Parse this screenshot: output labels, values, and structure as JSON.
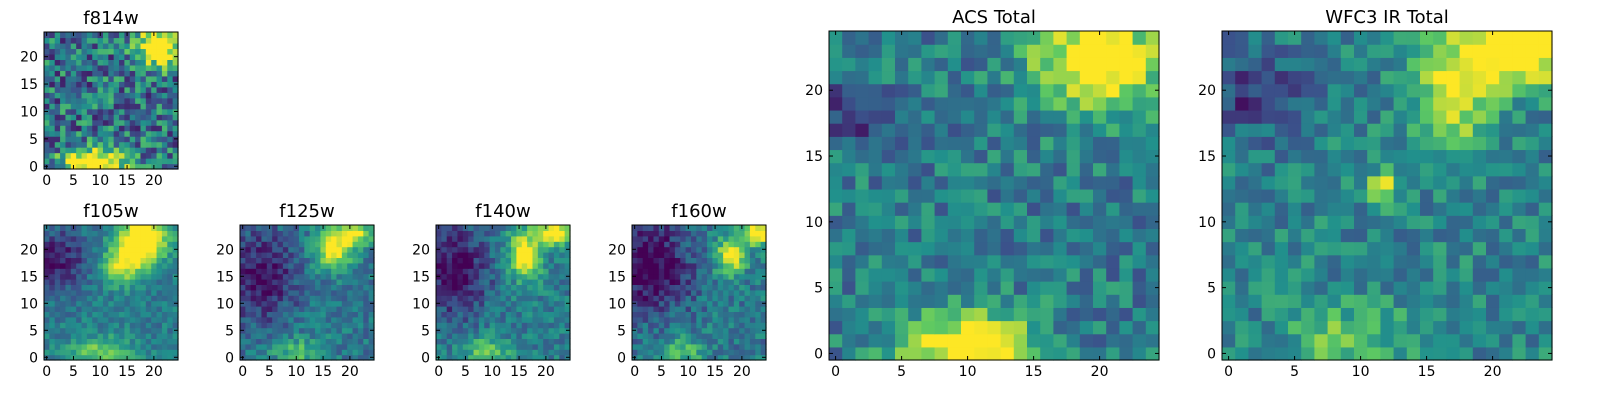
{
  "figure": {
    "grid": false,
    "colormap": "viridis"
  },
  "colormap_stops": [
    "#440154",
    "#3b528b",
    "#21918c",
    "#5ec962",
    "#fde725"
  ],
  "chart_data": [
    {
      "id": "f814w",
      "type": "heatmap",
      "title": "f814w",
      "shape": [
        25,
        25
      ],
      "xlim": [
        0,
        25
      ],
      "ylim": [
        0,
        25
      ],
      "xticks": [
        "0",
        "5",
        "10",
        "15",
        "20"
      ],
      "yticks": [
        "0",
        "5",
        "10",
        "15",
        "20"
      ],
      "xtick_values": [
        0,
        5,
        10,
        15,
        20
      ],
      "ytick_values": [
        0,
        5,
        10,
        15,
        20
      ],
      "layout": "small-grid",
      "hotspots": [
        {
          "x": 21,
          "y": 22,
          "intensity": 0.9,
          "sx": 3.0,
          "sy": 2.5
        },
        {
          "x": 9,
          "y": 0.5,
          "intensity": 0.9,
          "sx": 4.0,
          "sy": 2.0
        }
      ],
      "base_level": 0.38,
      "noise": 0.3
    },
    {
      "id": "f105w",
      "type": "heatmap",
      "title": "f105w",
      "shape": [
        25,
        25
      ],
      "xlim": [
        0,
        25
      ],
      "ylim": [
        0,
        25
      ],
      "xticks": [
        "0",
        "5",
        "10",
        "15",
        "20"
      ],
      "yticks": [
        "0",
        "5",
        "10",
        "15",
        "20"
      ],
      "xtick_values": [
        0,
        5,
        10,
        15,
        20
      ],
      "ytick_values": [
        0,
        5,
        10,
        15,
        20
      ],
      "hotspots": [
        {
          "x": 18,
          "y": 22,
          "intensity": 0.9,
          "sx": 3.0,
          "sy": 3.0
        },
        {
          "x": 14,
          "y": 17,
          "intensity": 0.5,
          "sx": 2.5,
          "sy": 2.5
        },
        {
          "x": 10,
          "y": 1,
          "intensity": 0.35,
          "sx": 4.0,
          "sy": 2.0
        }
      ],
      "dark_regions": [
        {
          "x": 2,
          "y": 18,
          "intensity": 0.35,
          "sx": 4.0,
          "sy": 4.0
        }
      ],
      "base_level": 0.42,
      "noise": 0.12
    },
    {
      "id": "f125w",
      "type": "heatmap",
      "title": "f125w",
      "shape": [
        25,
        25
      ],
      "xlim": [
        0,
        25
      ],
      "ylim": [
        0,
        25
      ],
      "xticks": [
        "0",
        "5",
        "10",
        "15",
        "20"
      ],
      "yticks": [
        "0",
        "5",
        "10",
        "15",
        "20"
      ],
      "xtick_values": [
        0,
        5,
        10,
        15,
        20
      ],
      "ytick_values": [
        0,
        5,
        10,
        15,
        20
      ],
      "hotspots": [
        {
          "x": 17,
          "y": 20,
          "intensity": 0.65,
          "sx": 2.5,
          "sy": 2.5
        },
        {
          "x": 21,
          "y": 23,
          "intensity": 0.6,
          "sx": 2.0,
          "sy": 1.5
        },
        {
          "x": 10,
          "y": 1,
          "intensity": 0.3,
          "sx": 3.0,
          "sy": 2.0
        }
      ],
      "dark_regions": [
        {
          "x": 3,
          "y": 15,
          "intensity": 0.35,
          "sx": 5.0,
          "sy": 6.0
        }
      ],
      "base_level": 0.4,
      "noise": 0.14
    },
    {
      "id": "f140w",
      "type": "heatmap",
      "title": "f140w",
      "shape": [
        25,
        25
      ],
      "xlim": [
        0,
        25
      ],
      "ylim": [
        0,
        25
      ],
      "xticks": [
        "0",
        "5",
        "10",
        "15",
        "20"
      ],
      "yticks": [
        "0",
        "5",
        "10",
        "15",
        "20"
      ],
      "xtick_values": [
        0,
        5,
        10,
        15,
        20
      ],
      "ytick_values": [
        0,
        5,
        10,
        15,
        20
      ],
      "hotspots": [
        {
          "x": 16,
          "y": 19,
          "intensity": 0.7,
          "sx": 2.0,
          "sy": 3.0
        },
        {
          "x": 22,
          "y": 23,
          "intensity": 0.65,
          "sx": 2.5,
          "sy": 1.5
        },
        {
          "x": 9,
          "y": 1,
          "intensity": 0.35,
          "sx": 3.0,
          "sy": 2.0
        }
      ],
      "dark_regions": [
        {
          "x": 3,
          "y": 16,
          "intensity": 0.4,
          "sx": 4.5,
          "sy": 6.0
        }
      ],
      "base_level": 0.42,
      "noise": 0.14
    },
    {
      "id": "f160w",
      "type": "heatmap",
      "title": "f160w",
      "shape": [
        25,
        25
      ],
      "xlim": [
        0,
        25
      ],
      "ylim": [
        0,
        25
      ],
      "xticks": [
        "0",
        "5",
        "10",
        "15",
        "20"
      ],
      "yticks": [
        "0",
        "5",
        "10",
        "15",
        "20"
      ],
      "xtick_values": [
        0,
        5,
        10,
        15,
        20
      ],
      "ytick_values": [
        0,
        5,
        10,
        15,
        20
      ],
      "hotspots": [
        {
          "x": 18,
          "y": 19,
          "intensity": 0.6,
          "sx": 2.0,
          "sy": 2.5
        },
        {
          "x": 23,
          "y": 23,
          "intensity": 0.75,
          "sx": 2.0,
          "sy": 1.5
        },
        {
          "x": 9,
          "y": 1,
          "intensity": 0.3,
          "sx": 3.0,
          "sy": 2.0
        }
      ],
      "dark_regions": [
        {
          "x": 3,
          "y": 17,
          "intensity": 0.45,
          "sx": 5.0,
          "sy": 6.0
        }
      ],
      "base_level": 0.4,
      "noise": 0.15
    },
    {
      "id": "acs-total",
      "type": "heatmap",
      "title": "ACS Total",
      "shape": [
        25,
        25
      ],
      "xlim": [
        0,
        25
      ],
      "ylim": [
        0,
        25
      ],
      "xticks": [
        "0",
        "5",
        "10",
        "15",
        "20"
      ],
      "yticks": [
        "0",
        "5",
        "10",
        "15",
        "20"
      ],
      "xtick_values": [
        0,
        5,
        10,
        15,
        20
      ],
      "ytick_values": [
        0,
        5,
        10,
        15,
        20
      ],
      "hotspots": [
        {
          "x": 20,
          "y": 22,
          "intensity": 0.75,
          "sx": 3.5,
          "sy": 2.5
        },
        {
          "x": 10,
          "y": 0.5,
          "intensity": 0.75,
          "sx": 3.5,
          "sy": 2.0
        }
      ],
      "dark_regions": [
        {
          "x": 1,
          "y": 18,
          "intensity": 0.3,
          "sx": 1.8,
          "sy": 1.5
        }
      ],
      "base_level": 0.42,
      "noise": 0.18
    },
    {
      "id": "wfc3-ir-total",
      "type": "heatmap",
      "title": "WFC3 IR Total",
      "shape": [
        25,
        25
      ],
      "xlim": [
        0,
        25
      ],
      "ylim": [
        0,
        25
      ],
      "xticks": [
        "0",
        "5",
        "10",
        "15",
        "20"
      ],
      "yticks": [
        "0",
        "5",
        "10",
        "15",
        "20"
      ],
      "xtick_values": [
        0,
        5,
        10,
        15,
        20
      ],
      "ytick_values": [
        0,
        5,
        10,
        15,
        20
      ],
      "hotspots": [
        {
          "x": 22,
          "y": 23,
          "intensity": 0.85,
          "sx": 2.5,
          "sy": 1.8
        },
        {
          "x": 17,
          "y": 20,
          "intensity": 0.55,
          "sx": 2.0,
          "sy": 3.0
        },
        {
          "x": 11.5,
          "y": 12.5,
          "intensity": 0.6,
          "sx": 0.8,
          "sy": 0.8
        },
        {
          "x": 9,
          "y": 1,
          "intensity": 0.3,
          "sx": 3.0,
          "sy": 2.0
        }
      ],
      "dark_regions": [
        {
          "x": 2,
          "y": 20,
          "intensity": 0.3,
          "sx": 2.5,
          "sy": 2.5
        }
      ],
      "base_level": 0.45,
      "noise": 0.16
    }
  ]
}
